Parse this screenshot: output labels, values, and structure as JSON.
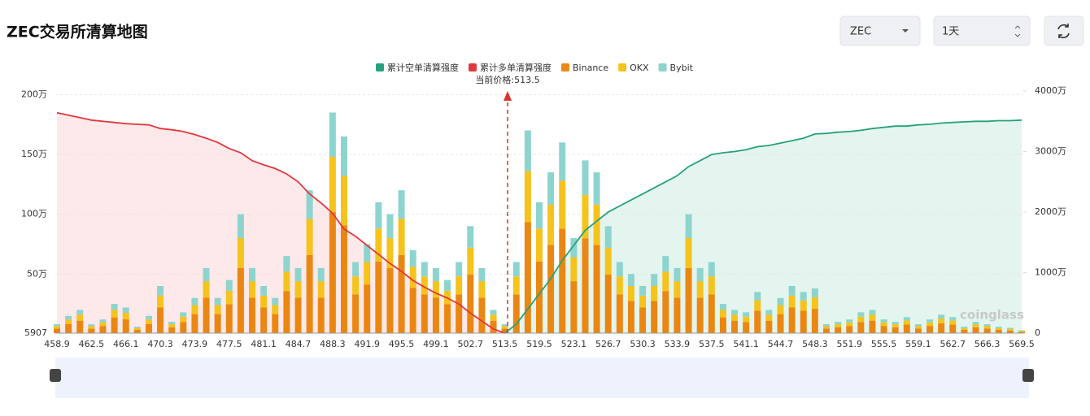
{
  "header": {
    "title": "ZEC交易所清算地图"
  },
  "controls": {
    "symbol": "ZEC",
    "interval": "1天"
  },
  "chart_data": {
    "type": "bar",
    "annotation": "当前价格:513.5",
    "watermark": "coinglass",
    "categories": [
      "458.9",
      null,
      null,
      "462.5",
      null,
      null,
      "466.1",
      null,
      null,
      "470.3",
      null,
      null,
      "473.9",
      null,
      null,
      "477.5",
      null,
      null,
      "481.1",
      null,
      null,
      "484.7",
      null,
      null,
      "488.3",
      null,
      null,
      "491.9",
      null,
      null,
      "495.5",
      null,
      null,
      "499.1",
      null,
      null,
      "502.7",
      null,
      null,
      "513.5",
      null,
      null,
      "519.5",
      null,
      null,
      "523.1",
      null,
      null,
      "526.7",
      null,
      null,
      "530.3",
      null,
      null,
      "533.9",
      null,
      null,
      "537.5",
      null,
      null,
      "541.1",
      null,
      null,
      "544.7",
      null,
      null,
      "548.3",
      null,
      null,
      "551.9",
      null,
      null,
      "555.5",
      null,
      null,
      "559.1",
      null,
      null,
      "562.7",
      null,
      null,
      "566.3",
      null,
      null,
      "569.5"
    ],
    "ylim": [
      5907,
      2030000
    ],
    "yticks": [
      5907,
      {
        "value": 500000,
        "label": "50万"
      },
      {
        "value": 1000000,
        "label": "100万"
      },
      {
        "value": 1500000,
        "label": "150万"
      },
      {
        "value": 2000000,
        "label": "200万"
      }
    ],
    "y2lim": [
      0,
      40000000
    ],
    "y2ticks": [
      0,
      {
        "value": 10000000,
        "label": "1000万"
      },
      {
        "value": 20000000,
        "label": "2000万"
      },
      {
        "value": 30000000,
        "label": "3000万"
      },
      {
        "value": 40000000,
        "label": "4000万"
      }
    ],
    "grid": true,
    "stacked": true,
    "series": [
      {
        "name": "累计空单清算强度",
        "type": "line",
        "axis": "y2",
        "color": "#26a17b",
        "fill": "#e3f5ee",
        "values": [
          null,
          null,
          null,
          null,
          null,
          null,
          null,
          null,
          null,
          null,
          null,
          null,
          null,
          null,
          null,
          null,
          null,
          null,
          null,
          null,
          null,
          null,
          null,
          null,
          null,
          null,
          null,
          null,
          null,
          null,
          null,
          null,
          null,
          null,
          null,
          null,
          null,
          null,
          null,
          0,
          1500000,
          4000000,
          6500000,
          9000000,
          12000000,
          14500000,
          17000000,
          18500000,
          20000000,
          21000000,
          22000000,
          23000000,
          24000000,
          25000000,
          26000000,
          27500000,
          28500000,
          29500000,
          29800000,
          30000000,
          30300000,
          30800000,
          31000000,
          31400000,
          31800000,
          32200000,
          32900000,
          33000000,
          33200000,
          33300000,
          33500000,
          33800000,
          34000000,
          34200000,
          34200000,
          34400000,
          34500000,
          34700000,
          34800000,
          34900000,
          35000000,
          35000000,
          35100000,
          35100000,
          35200000
        ]
      },
      {
        "name": "累计多单清算强度",
        "type": "line",
        "axis": "y2",
        "color": "#e0383e",
        "fill": "#fde8ea",
        "values": [
          36400000,
          36000000,
          35600000,
          35200000,
          35000000,
          34800000,
          34600000,
          34500000,
          34400000,
          33800000,
          33600000,
          33300000,
          32800000,
          32200000,
          31500000,
          30500000,
          29800000,
          28500000,
          27800000,
          27200000,
          26300000,
          25000000,
          23000000,
          21500000,
          19800000,
          17200000,
          16000000,
          14500000,
          13000000,
          11500000,
          10200000,
          8700000,
          7600000,
          6600000,
          5800000,
          4800000,
          3300000,
          2000000,
          700000,
          0,
          null,
          null,
          null,
          null,
          null,
          null,
          null,
          null,
          null,
          null,
          null,
          null,
          null,
          null,
          null,
          null,
          null,
          null,
          null,
          null,
          null,
          null,
          null,
          null,
          null,
          null,
          null,
          null,
          null,
          null,
          null,
          null,
          null,
          null,
          null,
          null,
          null,
          null,
          null,
          null,
          null,
          null,
          null,
          null,
          null
        ]
      },
      {
        "name": "Binance",
        "type": "bar",
        "color": "#ea8712",
        "values": [
          44000,
          82500,
          110000,
          44000,
          66000,
          137500,
          121000,
          33000,
          82500,
          220000,
          55000,
          99000,
          165000,
          302500,
          165000,
          247500,
          550000,
          302500,
          220000,
          165000,
          357500,
          302500,
          660000,
          302500,
          1017500,
          907500,
          330000,
          412500,
          605000,
          550000,
          660000,
          385000,
          330000,
          302500,
          247500,
          330000,
          495000,
          302500,
          110000,
          44000,
          330000,
          935000,
          605000,
          742500,
          880000,
          440000,
          797500,
          742500,
          495000,
          330000,
          275000,
          220000,
          275000,
          357500,
          302500,
          550000,
          302500,
          330000,
          137500,
          110000,
          99000,
          192500,
          110000,
          165000,
          220000,
          192500,
          209000,
          44000,
          55000,
          66000,
          99000,
          110000,
          66000,
          55000,
          77000,
          44000,
          66000,
          88000,
          77000,
          33000,
          55000,
          44000,
          33000,
          27500,
          16500
        ]
      },
      {
        "name": "OKX",
        "type": "bar",
        "color": "#f5c31c",
        "values": [
          20000,
          37500,
          50000,
          20000,
          30000,
          62500,
          55000,
          15000,
          37500,
          100000,
          25000,
          45000,
          75000,
          137500,
          75000,
          112500,
          250000,
          137500,
          100000,
          75000,
          162500,
          137500,
          300000,
          137500,
          462500,
          412500,
          150000,
          187500,
          275000,
          250000,
          300000,
          175000,
          150000,
          137500,
          112500,
          150000,
          225000,
          137500,
          50000,
          20000,
          150000,
          425000,
          275000,
          337500,
          400000,
          200000,
          362500,
          337500,
          225000,
          150000,
          125000,
          100000,
          125000,
          162500,
          137500,
          250000,
          137500,
          150000,
          62500,
          50000,
          45000,
          87500,
          50000,
          75000,
          100000,
          87500,
          95000,
          20000,
          25000,
          30000,
          45000,
          50000,
          30000,
          25000,
          35000,
          20000,
          30000,
          40000,
          35000,
          15000,
          25000,
          20000,
          15000,
          12500,
          7500
        ]
      },
      {
        "name": "Bybit",
        "type": "bar",
        "color": "#8ed4ce",
        "values": [
          16000,
          30000,
          40000,
          16000,
          24000,
          50000,
          44000,
          12000,
          30000,
          80000,
          20000,
          36000,
          60000,
          110000,
          60000,
          90000,
          200000,
          110000,
          80000,
          60000,
          130000,
          110000,
          240000,
          110000,
          370000,
          330000,
          120000,
          150000,
          220000,
          200000,
          240000,
          140000,
          120000,
          110000,
          90000,
          120000,
          180000,
          110000,
          40000,
          16000,
          120000,
          340000,
          220000,
          270000,
          320000,
          160000,
          290000,
          270000,
          180000,
          120000,
          100000,
          80000,
          100000,
          130000,
          110000,
          200000,
          110000,
          120000,
          50000,
          40000,
          36000,
          70000,
          40000,
          60000,
          80000,
          70000,
          76000,
          16000,
          20000,
          24000,
          36000,
          40000,
          24000,
          20000,
          28000,
          16000,
          24000,
          32000,
          28000,
          12000,
          20000,
          16000,
          12000,
          10000,
          6000
        ]
      }
    ]
  }
}
